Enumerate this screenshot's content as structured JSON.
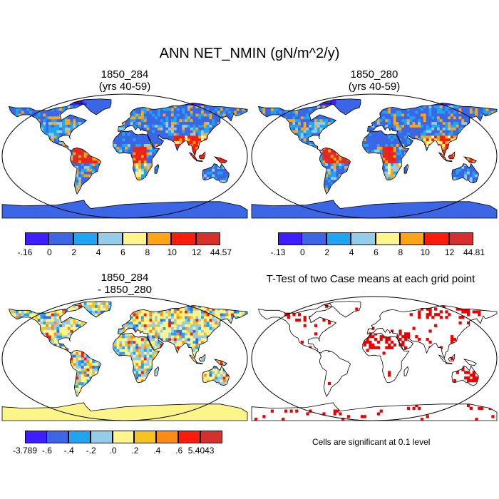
{
  "title": "ANN NET_NMIN (gN/m^2/y)",
  "panels": [
    {
      "id": "case1",
      "title_line1": "1850_284",
      "title_line2": "(yrs 40-59)",
      "colorbar": {
        "colors": [
          "#3f1dff",
          "#3b66e6",
          "#1ea6f2",
          "#94cdea",
          "#fdf48a",
          "#ffa514",
          "#ff1a0a",
          "#d7302c"
        ],
        "ticks": [
          "-.16",
          "0",
          "2",
          "4",
          "6",
          "8",
          "10",
          "12",
          "44.57"
        ]
      }
    },
    {
      "id": "case2",
      "title_line1": "1850_280",
      "title_line2": "(yrs 40-59)",
      "colorbar": {
        "colors": [
          "#3f1dff",
          "#3b66e6",
          "#1ea6f2",
          "#94cdea",
          "#fdf48a",
          "#ffa514",
          "#ff1a0a",
          "#d7302c"
        ],
        "ticks": [
          "-.13",
          "0",
          "2",
          "4",
          "6",
          "8",
          "10",
          "12",
          "44.81"
        ]
      }
    },
    {
      "id": "diff",
      "title_line1": "1850_284",
      "title_line2": "- 1850_280",
      "colorbar": {
        "colors": [
          "#3f1dff",
          "#3b66e6",
          "#1ea6f2",
          "#94cdea",
          "#fdf48a",
          "#f7c41e",
          "#ff8a14",
          "#ff1a0a",
          "#d7302c"
        ],
        "ticks": [
          "-3.789",
          "-.6",
          "-.4",
          "-.2",
          ".0",
          ".2",
          ".4",
          ".6",
          "5.4043"
        ]
      }
    },
    {
      "id": "ttest",
      "title_line1": "T-Test of two Case means at each grid point",
      "title_line2": "",
      "note": "Cells are significant at 0.1 level",
      "significant_color": "#ee0000"
    }
  ]
}
